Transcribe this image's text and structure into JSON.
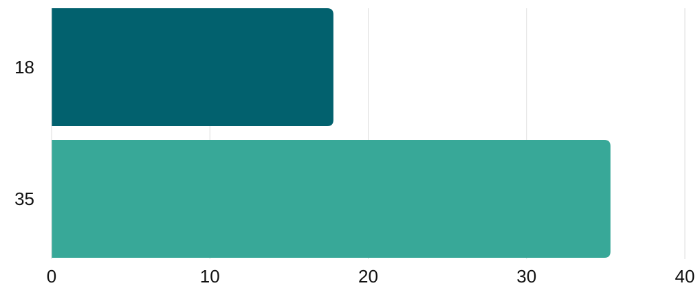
{
  "chart_data": {
    "type": "bar",
    "orientation": "horizontal",
    "categories": [
      "18",
      "35"
    ],
    "values": [
      17.8,
      35.3
    ],
    "colors": [
      "#02616E",
      "#38A898"
    ],
    "xlim": [
      0,
      40
    ],
    "x_ticks": [
      "0",
      "10",
      "20",
      "30",
      "40"
    ],
    "grid": true,
    "title": "",
    "xlabel": "",
    "ylabel": ""
  }
}
